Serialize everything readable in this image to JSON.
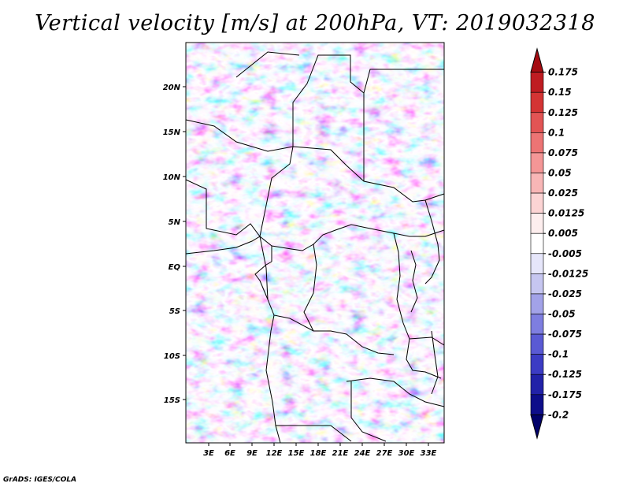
{
  "title": "Vertical velocity [m/s] at 200hPa, VT: 2019032318",
  "credit": "GrADS: IGES/COLA",
  "latitude_labels": [
    "20N",
    "15N",
    "10N",
    "5N",
    "EQ",
    "5S",
    "10S",
    "15S"
  ],
  "longitude_labels": [
    "3E",
    "6E",
    "9E",
    "12E",
    "15E",
    "18E",
    "21E",
    "24E",
    "27E",
    "30E",
    "33E"
  ],
  "colorbar": {
    "levels": [
      "0.175",
      "0.15",
      "0.125",
      "0.1",
      "0.075",
      "0.05",
      "0.025",
      "0.0125",
      "0.005",
      "-0.005",
      "-0.0125",
      "-0.025",
      "-0.05",
      "-0.075",
      "-0.1",
      "-0.125",
      "-0.175",
      "-0.2"
    ],
    "colors": [
      "#a50c12",
      "#bf1c22",
      "#d43434",
      "#e25454",
      "#ec7474",
      "#f49696",
      "#f8b6b6",
      "#fcd4d4",
      "#fdeeee",
      "#ffffff",
      "#e6e6fa",
      "#c6c6f0",
      "#a2a2e8",
      "#7e7ee0",
      "#5a5ad4",
      "#3c3cc4",
      "#2222a8",
      "#0e0e8a",
      "#02026a"
    ]
  },
  "field": {
    "description_colors": [
      "#ffffff",
      "#fcd4d4",
      "#f49696",
      "#e25454",
      "#e6e6fa",
      "#a2a2e8",
      "#5a5ad4",
      "#a50c12",
      "#2222a8"
    ]
  }
}
